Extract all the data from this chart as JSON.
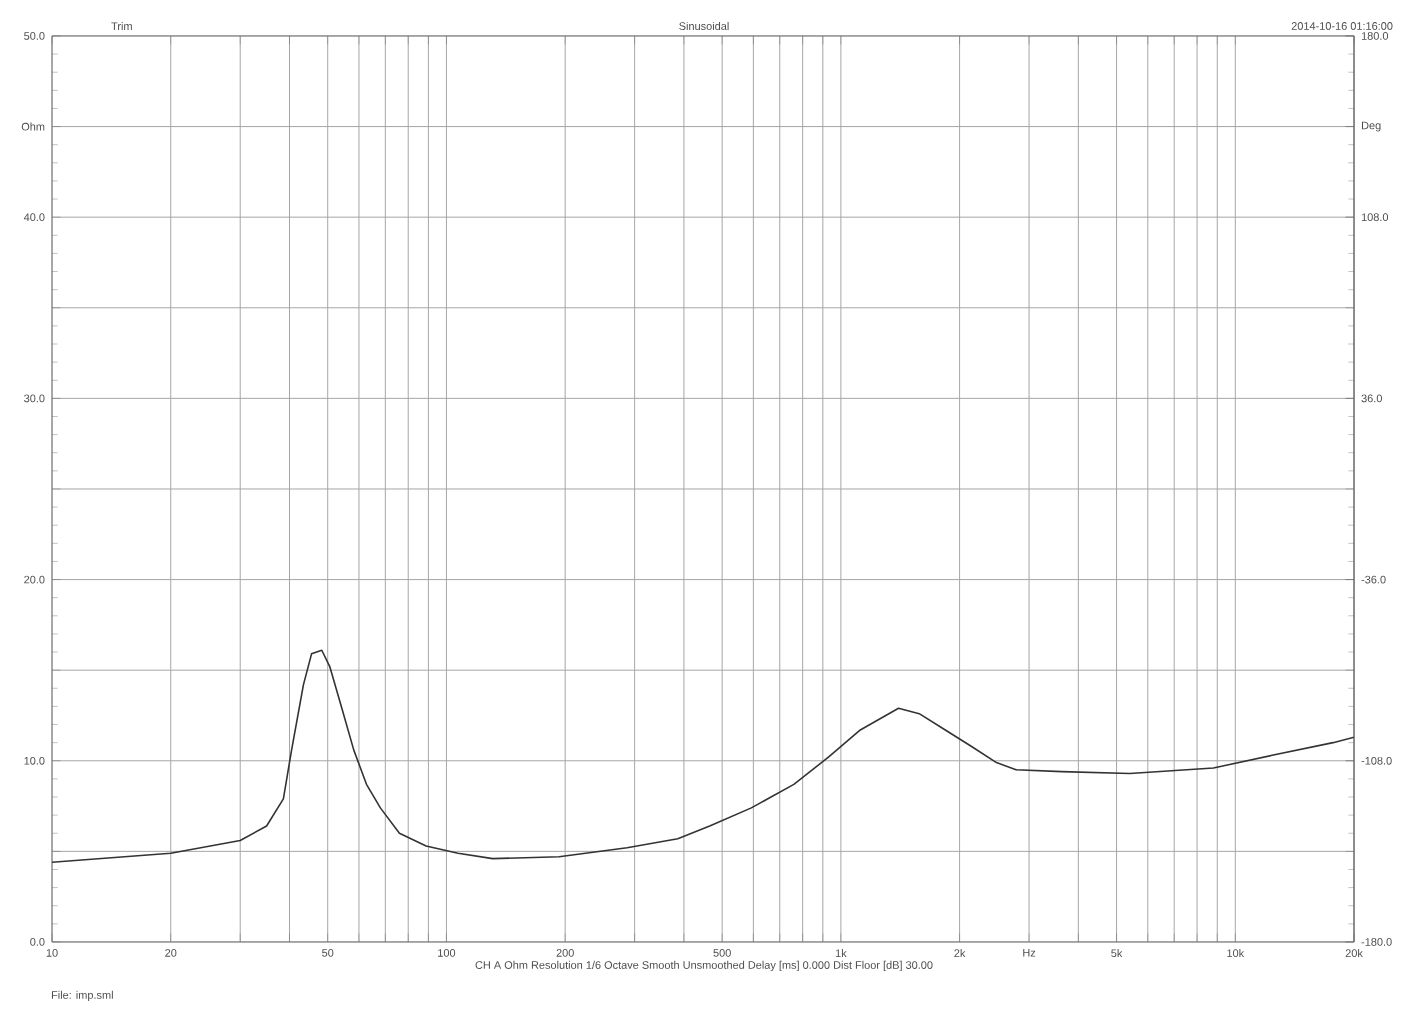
{
  "chart_data": {
    "type": "line",
    "title": "Sinusoidal",
    "annotations": [
      "Trim",
      "2014-10-16 01:16:00",
      "CH A   Ohm   Resolution 1/6 Octave   Smooth Unsmoothed   Delay [ms] 0.000   Dist Floor [dB] 30.00",
      "File: imp.sml"
    ],
    "x": [
      10,
      20,
      30,
      35,
      38.6,
      40.5,
      43.4,
      45.5,
      48.3,
      50.6,
      54.3,
      58.2,
      62.7,
      68,
      76,
      88.8,
      107,
      131,
      193,
      287,
      386,
      465,
      593,
      760,
      930,
      1120,
      1400,
      1580,
      1840,
      2140,
      2480,
      2780,
      3630,
      5400,
      8800,
      12400,
      17700,
      20000
    ],
    "values": [
      4.4,
      4.9,
      5.6,
      6.4,
      7.9,
      10.6,
      14.2,
      15.9,
      16.1,
      15.2,
      12.9,
      10.6,
      8.7,
      7.4,
      6.0,
      5.3,
      4.9,
      4.6,
      4.7,
      5.2,
      5.7,
      6.4,
      7.4,
      8.7,
      10.2,
      11.7,
      12.9,
      12.6,
      11.7,
      10.8,
      9.9,
      9.5,
      9.4,
      9.3,
      9.6,
      10.3,
      11.0,
      11.3
    ],
    "color": "#333333",
    "log": "x",
    "grid": true,
    "xlim": [
      10,
      20000
    ],
    "xticks": [
      10,
      20,
      {
        "value": 30,
        "label": null
      },
      {
        "value": 40,
        "label": null
      },
      50,
      {
        "value": 60,
        "label": null
      },
      {
        "value": 70,
        "label": null
      },
      {
        "value": 80,
        "label": null
      },
      {
        "value": 90,
        "label": null
      },
      100,
      200,
      {
        "value": 300,
        "label": null
      },
      {
        "value": 400,
        "label": null
      },
      500,
      {
        "value": 600,
        "label": null
      },
      {
        "value": 700,
        "label": null
      },
      {
        "value": 800,
        "label": null
      },
      {
        "value": 900,
        "label": null
      },
      {
        "value": 1000,
        "label": "1k"
      },
      {
        "value": 2000,
        "label": "2k"
      },
      {
        "value": 3000,
        "label": "Hz"
      },
      {
        "value": 4000,
        "label": null
      },
      {
        "value": 5000,
        "label": "5k"
      },
      {
        "value": 6000,
        "label": null
      },
      {
        "value": 7000,
        "label": null
      },
      {
        "value": 8000,
        "label": null
      },
      {
        "value": 9000,
        "label": null
      },
      {
        "value": 10000,
        "label": "10k"
      },
      {
        "value": 20000,
        "label": "20k"
      }
    ],
    "ylim": [
      0,
      50
    ],
    "yticks": [
      {
        "value": 0,
        "label": "0.0"
      },
      {
        "value": 5,
        "label": null
      },
      {
        "value": 10,
        "label": "10.0"
      },
      {
        "value": 15,
        "label": null
      },
      {
        "value": 20,
        "label": "20.0"
      },
      {
        "value": 25,
        "label": null
      },
      {
        "value": 30,
        "label": "30.0"
      },
      {
        "value": 35,
        "label": null
      },
      {
        "value": 40,
        "label": "40.0"
      },
      {
        "value": 45,
        "label": "Ohm"
      },
      {
        "value": 50,
        "label": "50.0"
      }
    ],
    "y2lim": [
      -180,
      180
    ],
    "y2ticks": [
      {
        "value": -180,
        "label": "-180.0"
      },
      {
        "value": -108,
        "label": "-108.0"
      },
      {
        "value": -36,
        "label": "-36.0"
      },
      {
        "value": 36,
        "label": "36.0"
      },
      {
        "value": 108,
        "label": "108.0"
      },
      {
        "value": 144,
        "label": "Deg"
      },
      {
        "value": 180,
        "label": "180.0"
      }
    ]
  }
}
